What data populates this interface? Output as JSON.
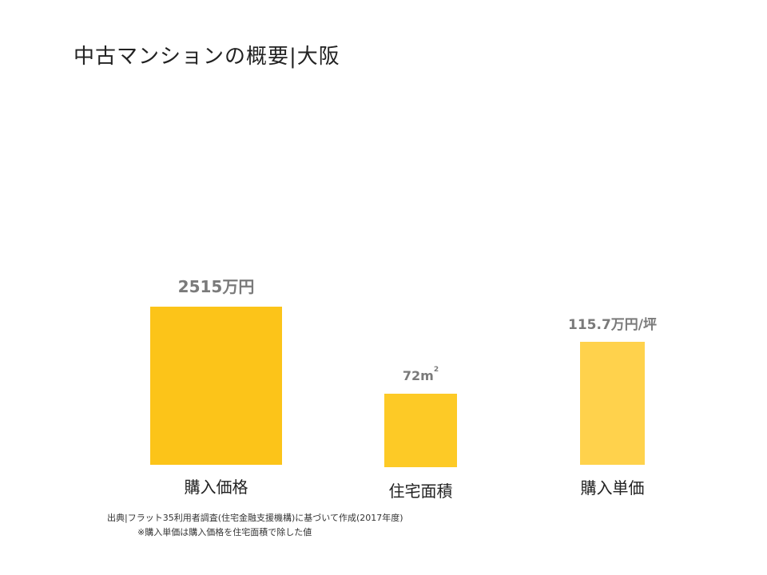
{
  "title": "中古マンションの概要|大阪",
  "chart_data": {
    "type": "bar",
    "categories": [
      "購入価格",
      "住宅面積",
      "購入単価"
    ],
    "series": [
      {
        "values": [
          2515,
          72,
          115.7
        ]
      }
    ],
    "data_labels": [
      "2515万円",
      "72㎡",
      "115.7万円/坪"
    ],
    "colors": [
      "#fcc419",
      "#fdca26",
      "#ffd24c"
    ],
    "grid": false,
    "legend": "none"
  },
  "source": {
    "line1": "出典|フラット35利用者調査(住宅金融支援機構)に基づいて作成(2017年度)",
    "line2": "※購入単価は購入価格を住宅面積で除した値"
  }
}
